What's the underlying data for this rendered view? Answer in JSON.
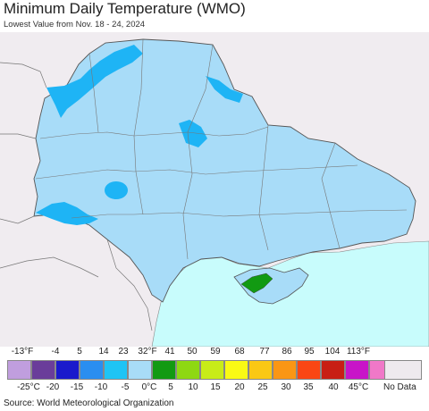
{
  "header": {
    "title": "Minimum Daily Temperature (WMO)",
    "subtitle": "Lowest Value from Nov. 18 - 24, 2024"
  },
  "legend": {
    "fahrenheit_ticks": [
      "-13°F",
      "-4",
      "5",
      "14",
      "23",
      "32°F",
      "41",
      "50",
      "59",
      "68",
      "77",
      "86",
      "95",
      "104",
      "113°F"
    ],
    "celsius_ticks": [
      "-25°C",
      "-20",
      "-15",
      "-10",
      "-5",
      "0°C",
      "5",
      "10",
      "15",
      "20",
      "25",
      "30",
      "35",
      "40",
      "45°C"
    ],
    "colors": [
      "#c09ede",
      "#6a3d9a",
      "#1a1acc",
      "#2a8ef0",
      "#1ec4f5",
      "#a8dcf8",
      "#129a12",
      "#8ed812",
      "#c8ec18",
      "#fafa14",
      "#fac814",
      "#fa9614",
      "#fa4614",
      "#c81e14",
      "#c814c8",
      "#f078c8"
    ],
    "no_data_label": "No Data",
    "no_data_color": "#eeeaee"
  },
  "map": {
    "colors": {
      "background_land": "#f0ecf0",
      "sea": "#c8fcfc",
      "region_main": "#a8dcf8",
      "region_cold": "#1eb4f5",
      "region_mild": "#129a12"
    }
  },
  "footer": {
    "source": "Source: World Meteorological Organization"
  }
}
